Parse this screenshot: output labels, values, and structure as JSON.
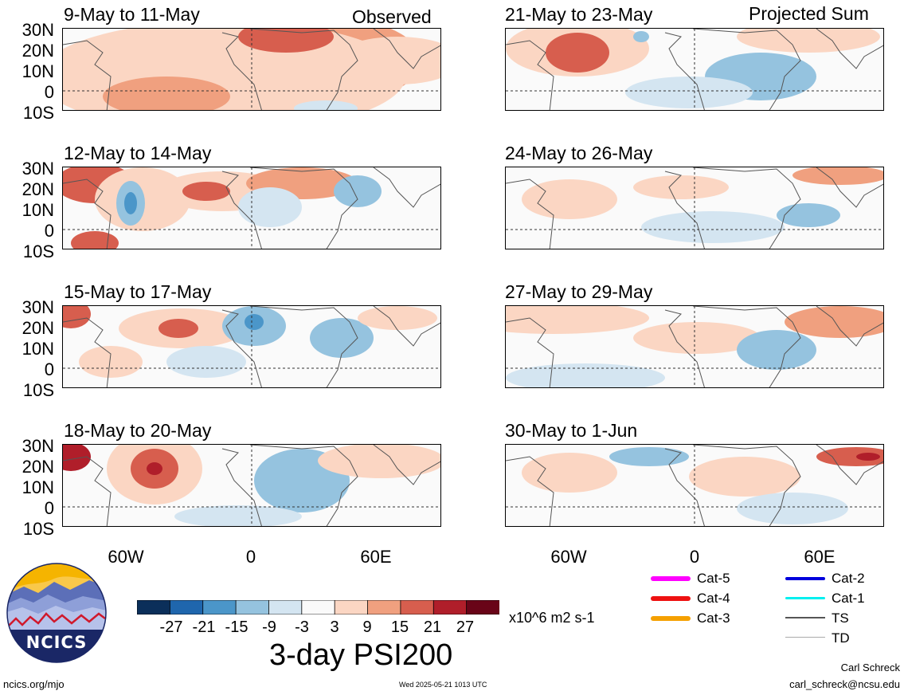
{
  "header": {
    "observed_label": "Observed",
    "projected_label": "Projected Sum"
  },
  "panels_left": [
    {
      "title": "9-May to 11-May"
    },
    {
      "title": "12-May to 14-May"
    },
    {
      "title": "15-May to 17-May"
    },
    {
      "title": "18-May to 20-May"
    }
  ],
  "panels_right": [
    {
      "title": "21-May to 23-May"
    },
    {
      "title": "24-May to 26-May"
    },
    {
      "title": "27-May to 29-May"
    },
    {
      "title": "30-May to 1-Jun"
    }
  ],
  "lat_labels": [
    "30N",
    "20N",
    "10N",
    "0",
    "10S"
  ],
  "lon_labels": [
    "60W",
    "0",
    "60E"
  ],
  "colorbar": {
    "ticks": [
      "-27",
      "-21",
      "-15",
      "-9",
      "-3",
      "3",
      "9",
      "15",
      "21",
      "27"
    ],
    "colors": [
      "#0b2f5a",
      "#1f66ad",
      "#4b96c9",
      "#95c3df",
      "#d4e5f1",
      "#fafafa",
      "#fbd6c3",
      "#f0a07f",
      "#d75e4e",
      "#b01e2a",
      "#690418"
    ],
    "units": "x10^6 m2 s-1",
    "title": "3-day PSI200"
  },
  "storm_legend": [
    {
      "label": "Cat-5",
      "color": "#ff00ff"
    },
    {
      "label": "Cat-4",
      "color": "#ee1111"
    },
    {
      "label": "Cat-3",
      "color": "#f5a000"
    },
    {
      "label": "Cat-2",
      "color": "#0000dd"
    },
    {
      "label": "Cat-1",
      "color": "#00f0f0"
    },
    {
      "label": "TS",
      "color": "#555555"
    },
    {
      "label": "TD",
      "color": "#aaaaaa"
    }
  ],
  "logo": {
    "text": "NCICS"
  },
  "footer": {
    "url": "ncics.org/mjo",
    "timestamp": "Wed 2025-05-21 1013 UTC",
    "author": "Carl Schreck",
    "email": "carl_schreck@ncsu.edu"
  }
}
